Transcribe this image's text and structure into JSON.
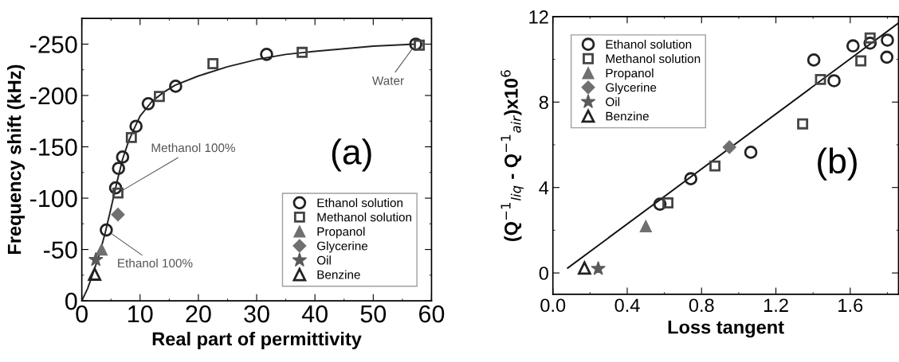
{
  "chart_data": [
    {
      "type": "scatter",
      "xlabel": "Real part of permittivity",
      "ylabel": "Frequency shift (kHz)",
      "xlim": [
        0,
        60
      ],
      "xticks": [
        0,
        10,
        20,
        30,
        40,
        50,
        60
      ],
      "ylim": [
        0,
        -275
      ],
      "yticks": [
        0,
        -50,
        -100,
        -150,
        -200,
        -250
      ],
      "legend": "bottom right",
      "grid": false,
      "annotations": [
        "(a)",
        {
          "text": "Water",
          "x": 57.3,
          "y": -250
        },
        {
          "text": "Methanol 100%",
          "x": 6.2,
          "y": -105
        },
        {
          "text": "Ethanol 100%",
          "x": 4.2,
          "y": -69
        }
      ],
      "series": [
        {
          "name": "Ethanol solution",
          "color": "#222222",
          "marker": "circle",
          "x": [
            4.2,
            5.8,
            6.3,
            7.0,
            9.3,
            11.4,
            16.1,
            31.7,
            57.3
          ],
          "values": [
            -69,
            -110,
            -129,
            -140,
            -170,
            -192,
            -209,
            -240,
            -250
          ]
        },
        {
          "name": "Methanol solution",
          "color": "#444444",
          "marker": "square",
          "x": [
            6.2,
            8.5,
            13.3,
            22.5,
            37.8,
            57.9
          ],
          "values": [
            -105,
            -159,
            -199,
            -231,
            -242,
            -249
          ]
        },
        {
          "name": "Propanol",
          "color": "#707070",
          "marker": "triangle",
          "x": [
            3.4
          ],
          "values": [
            -50
          ]
        },
        {
          "name": "Glycerine",
          "color": "#707070",
          "marker": "diamond",
          "x": [
            6.2
          ],
          "values": [
            -84
          ]
        },
        {
          "name": "Oil",
          "color": "#5a5a5a",
          "marker": "star",
          "x": [
            2.4
          ],
          "values": [
            -40
          ]
        },
        {
          "name": "Benzine",
          "color": "#222222",
          "marker": "triangle",
          "x": [
            2.2
          ],
          "values": [
            -26
          ]
        },
        {
          "type": "line",
          "color": "#222222",
          "marker": "none",
          "x": [
            0,
            1,
            2,
            3,
            4,
            5,
            6,
            7,
            8,
            9,
            10,
            12,
            14,
            16,
            20,
            25,
            30,
            35,
            40,
            50,
            57
          ],
          "values": [
            0,
            -12,
            -28,
            -45,
            -66,
            -90,
            -115,
            -138,
            -155,
            -168,
            -180,
            -194,
            -203,
            -210,
            -219,
            -228,
            -235,
            -240,
            -243,
            -248,
            -250
          ]
        }
      ]
    },
    {
      "type": "scatter",
      "xlabel": "Loss tangent",
      "ylabel": "(Q$^{−1}$$_{liq}$ - Q$^{−1}$$_{air}$)x10$^{6}$",
      "xlim": [
        0,
        1.86
      ],
      "xticks": [
        {
          "value": 0,
          "label": "0.0"
        },
        0.4,
        0.8,
        1.2,
        1.6
      ],
      "ylim": [
        -1,
        12
      ],
      "yticks": [
        0,
        4,
        8,
        12
      ],
      "legend": "top left",
      "grid": false,
      "annotations": [
        "(b)"
      ],
      "series": [
        {
          "name": "Ethanol solution",
          "color": "#222222",
          "marker": "circle",
          "x": [
            0.576,
            0.742,
            1.065,
            1.404,
            1.513,
            1.615,
            1.707,
            1.8,
            1.797
          ],
          "values": [
            3.22,
            4.41,
            5.65,
            9.97,
            9.0,
            10.63,
            10.76,
            10.9,
            10.1
          ]
        },
        {
          "name": "Methanol solution",
          "color": "#444444",
          "marker": "square",
          "x": [
            0.619,
            0.872,
            1.344,
            1.44,
            1.657,
            1.707
          ],
          "values": [
            3.28,
            5.01,
            6.98,
            9.06,
            9.93,
            11.0
          ]
        },
        {
          "name": "Propanol",
          "color": "#707070",
          "marker": "triangle",
          "x": [
            0.5
          ],
          "values": [
            2.19
          ]
        },
        {
          "name": "Glycerine",
          "color": "#707070",
          "marker": "diamond",
          "x": [
            0.95
          ],
          "values": [
            5.89
          ]
        },
        {
          "name": "Oil",
          "color": "#5a5a5a",
          "marker": "star",
          "x": [
            0.244
          ],
          "values": [
            0.2
          ]
        },
        {
          "name": "Benzine",
          "color": "#222222",
          "marker": "triangle",
          "x": [
            0.17
          ],
          "values": [
            0.23
          ]
        },
        {
          "type": "line",
          "color": "#111111",
          "marker": "none",
          "x": [
            0.08,
            1.86
          ],
          "values": [
            0.23,
            11.7
          ]
        }
      ]
    }
  ]
}
